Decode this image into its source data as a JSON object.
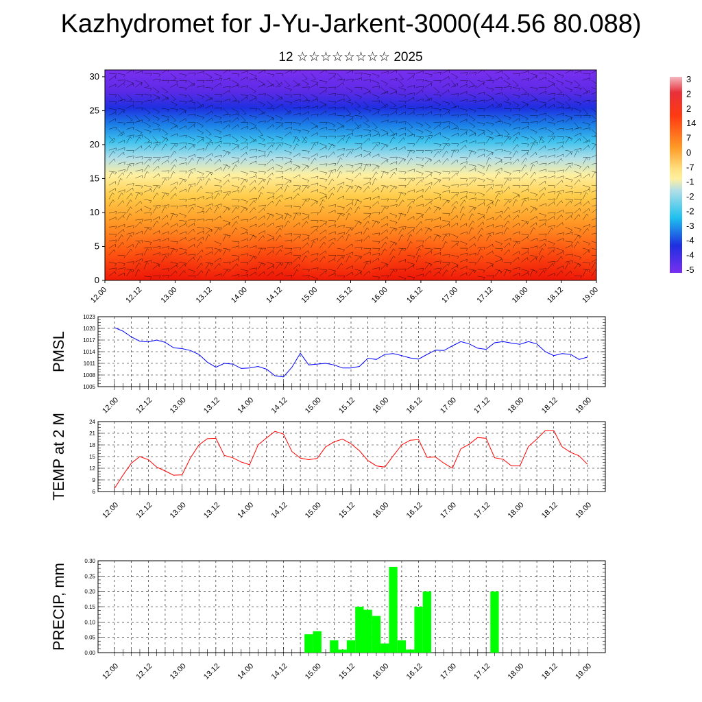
{
  "title": "Kazhydromet for J-Yu-Jarkent-3000(44.56 80.088)",
  "subtitle": "12 ☆☆☆☆☆☆☆☆ 2025",
  "x_ticks": [
    "12.00",
    "12.12",
    "13.00",
    "13.12",
    "14.00",
    "14.12",
    "15.00",
    "15.12",
    "16.00",
    "16.12",
    "17.00",
    "17.12",
    "18.00",
    "18.12",
    "19.00"
  ],
  "colorbar_labels": [
    "3",
    "2",
    "2",
    "14",
    "7",
    "0",
    "-7",
    "-1",
    "-2",
    "-2",
    "-3",
    "-4",
    "-4",
    "-5"
  ],
  "chart_data": [
    {
      "type": "heatmap",
      "name": "cross-section",
      "ylim": [
        0,
        31
      ],
      "yticks": [
        0,
        5,
        10,
        15,
        20,
        25,
        30
      ],
      "x_categories": [
        "12.00",
        "12.12",
        "13.00",
        "13.12",
        "14.00",
        "14.12",
        "15.00",
        "15.12",
        "16.00",
        "16.12",
        "17.00",
        "17.12",
        "18.00",
        "18.12",
        "19.00"
      ],
      "legend": "right colorbar"
    },
    {
      "type": "line",
      "ylabel": "PMSL",
      "ylim": [
        1005,
        1023
      ],
      "yticks": [
        1005,
        1008,
        1011,
        1014,
        1017,
        1020,
        1023
      ],
      "color": "#0000ff",
      "x_start": 0,
      "x_step": 3,
      "values": [
        1020.2,
        1019.3,
        1017.8,
        1016.7,
        1016.5,
        1017.0,
        1016.4,
        1015.0,
        1014.8,
        1014.3,
        1013.3,
        1011.3,
        1010.0,
        1011.0,
        1010.8,
        1009.7,
        1009.8,
        1010.2,
        1009.5,
        1007.8,
        1007.5,
        1010.0,
        1013.6,
        1010.6,
        1010.8,
        1011.0,
        1010.6,
        1009.8,
        1009.8,
        1010.2,
        1012.3,
        1012.0,
        1013.3,
        1013.5,
        1013.0,
        1012.4,
        1012.1,
        1013.3,
        1014.4,
        1014.3,
        1015.5,
        1016.6,
        1016.0,
        1014.9,
        1014.6,
        1016.3,
        1016.6,
        1016.2,
        1015.9,
        1016.6,
        1016.0,
        1014.0,
        1013.0,
        1013.5,
        1013.3,
        1012.0,
        1012.6
      ]
    },
    {
      "type": "line",
      "ylabel": "TEMP at 2 M",
      "ylim": [
        6,
        24
      ],
      "yticks": [
        6,
        9,
        12,
        15,
        18,
        21,
        24
      ],
      "color": "#ff0000",
      "x_start": 0,
      "x_step": 3,
      "values": [
        6.8,
        10.2,
        13.3,
        15.0,
        14.2,
        12.3,
        11.3,
        10.2,
        10.3,
        14.7,
        18.0,
        19.6,
        19.7,
        15.3,
        14.7,
        13.6,
        12.9,
        18.0,
        19.8,
        21.5,
        20.8,
        16.3,
        14.6,
        14.2,
        14.5,
        17.5,
        18.8,
        19.5,
        18.3,
        16.5,
        14.0,
        12.6,
        12.3,
        15.2,
        18.0,
        19.2,
        19.4,
        14.8,
        14.9,
        13.3,
        12.0,
        17.0,
        18.2,
        19.9,
        19.7,
        14.7,
        14.3,
        12.6,
        12.6,
        17.6,
        19.5,
        21.7,
        21.7,
        17.5,
        16.1,
        15.2,
        13.0
      ]
    },
    {
      "type": "bar",
      "ylabel": "PRECIP, mm",
      "ylim": [
        0,
        0.3
      ],
      "yticks": [
        0,
        0.05,
        0.1,
        0.15,
        0.2,
        0.25,
        0.3
      ],
      "ytick_labels": [
        "0.00",
        "0.05",
        "0.10",
        "0.15",
        "0.20",
        "0.25",
        "0.30"
      ],
      "color": "#00ff00",
      "x_start": 0,
      "x_step": 3,
      "values": [
        0,
        0,
        0,
        0,
        0,
        0,
        0,
        0,
        0,
        0,
        0,
        0,
        0,
        0,
        0,
        0,
        0,
        0,
        0,
        0,
        0,
        0,
        0,
        0.06,
        0.07,
        0,
        0.04,
        0.01,
        0.04,
        0.15,
        0.14,
        0.12,
        0.03,
        0.28,
        0.04,
        0.01,
        0.15,
        0.2,
        0,
        0,
        0,
        0,
        0,
        0,
        0,
        0.2,
        0,
        0,
        0,
        0,
        0,
        0,
        0,
        0,
        0,
        0,
        0
      ]
    }
  ]
}
